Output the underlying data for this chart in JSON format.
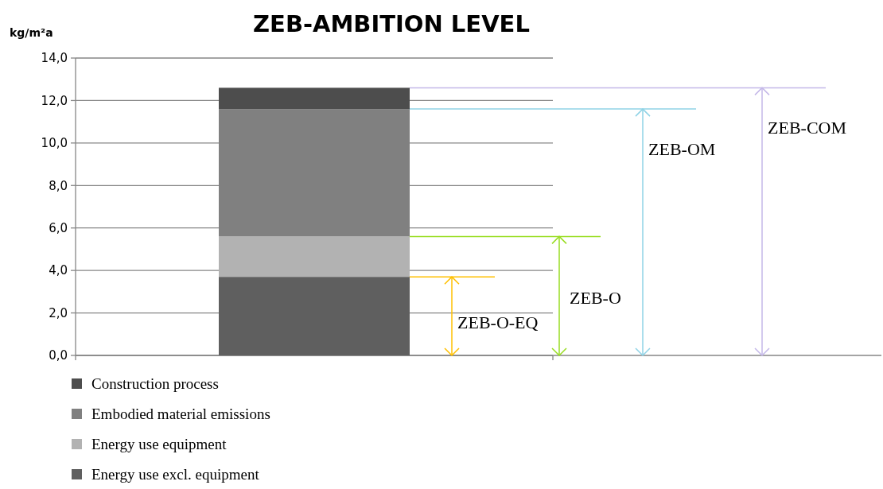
{
  "chart_data": {
    "type": "bar",
    "title": "ZEB-AMBITION LEVEL",
    "ylabel": "kg/m²a",
    "categories": [
      null
    ],
    "stacked": true,
    "series": [
      {
        "name": "Energy use excl. equipment",
        "color": "#5f5f5f",
        "values": [
          3.7
        ]
      },
      {
        "name": "Energy use equipment",
        "color": "#b2b2b2",
        "values": [
          1.9
        ]
      },
      {
        "name": "Embodied material emissions",
        "color": "#808080",
        "values": [
          6.0
        ]
      },
      {
        "name": "Construction process",
        "color": "#4d4d4d",
        "values": [
          1.0
        ]
      }
    ],
    "ylim": [
      0,
      14
    ],
    "yticks": [
      {
        "value": 0,
        "label": "0,0"
      },
      {
        "value": 2,
        "label": "2,0"
      },
      {
        "value": 4,
        "label": "4,0"
      },
      {
        "value": 6,
        "label": "6,0"
      },
      {
        "value": 8,
        "label": "8,0"
      },
      {
        "value": 10,
        "label": "10,0"
      },
      {
        "value": 12,
        "label": "12,0"
      },
      {
        "value": 14,
        "label": "14,0"
      }
    ],
    "grid": "y",
    "legend": "bottom left",
    "ref_lines": [
      {
        "axis": "y",
        "value": 3.7,
        "label": "ZEB-O-EQ",
        "color": "#ffc000"
      },
      {
        "axis": "y",
        "value": 5.6,
        "label": "ZEB-O",
        "color": "#99dd22"
      },
      {
        "axis": "y",
        "value": 11.6,
        "label": "ZEB-OM",
        "color": "#8fd3e6"
      },
      {
        "axis": "y",
        "value": 12.6,
        "label": "ZEB-COM",
        "color": "#c4b8e8"
      }
    ]
  }
}
